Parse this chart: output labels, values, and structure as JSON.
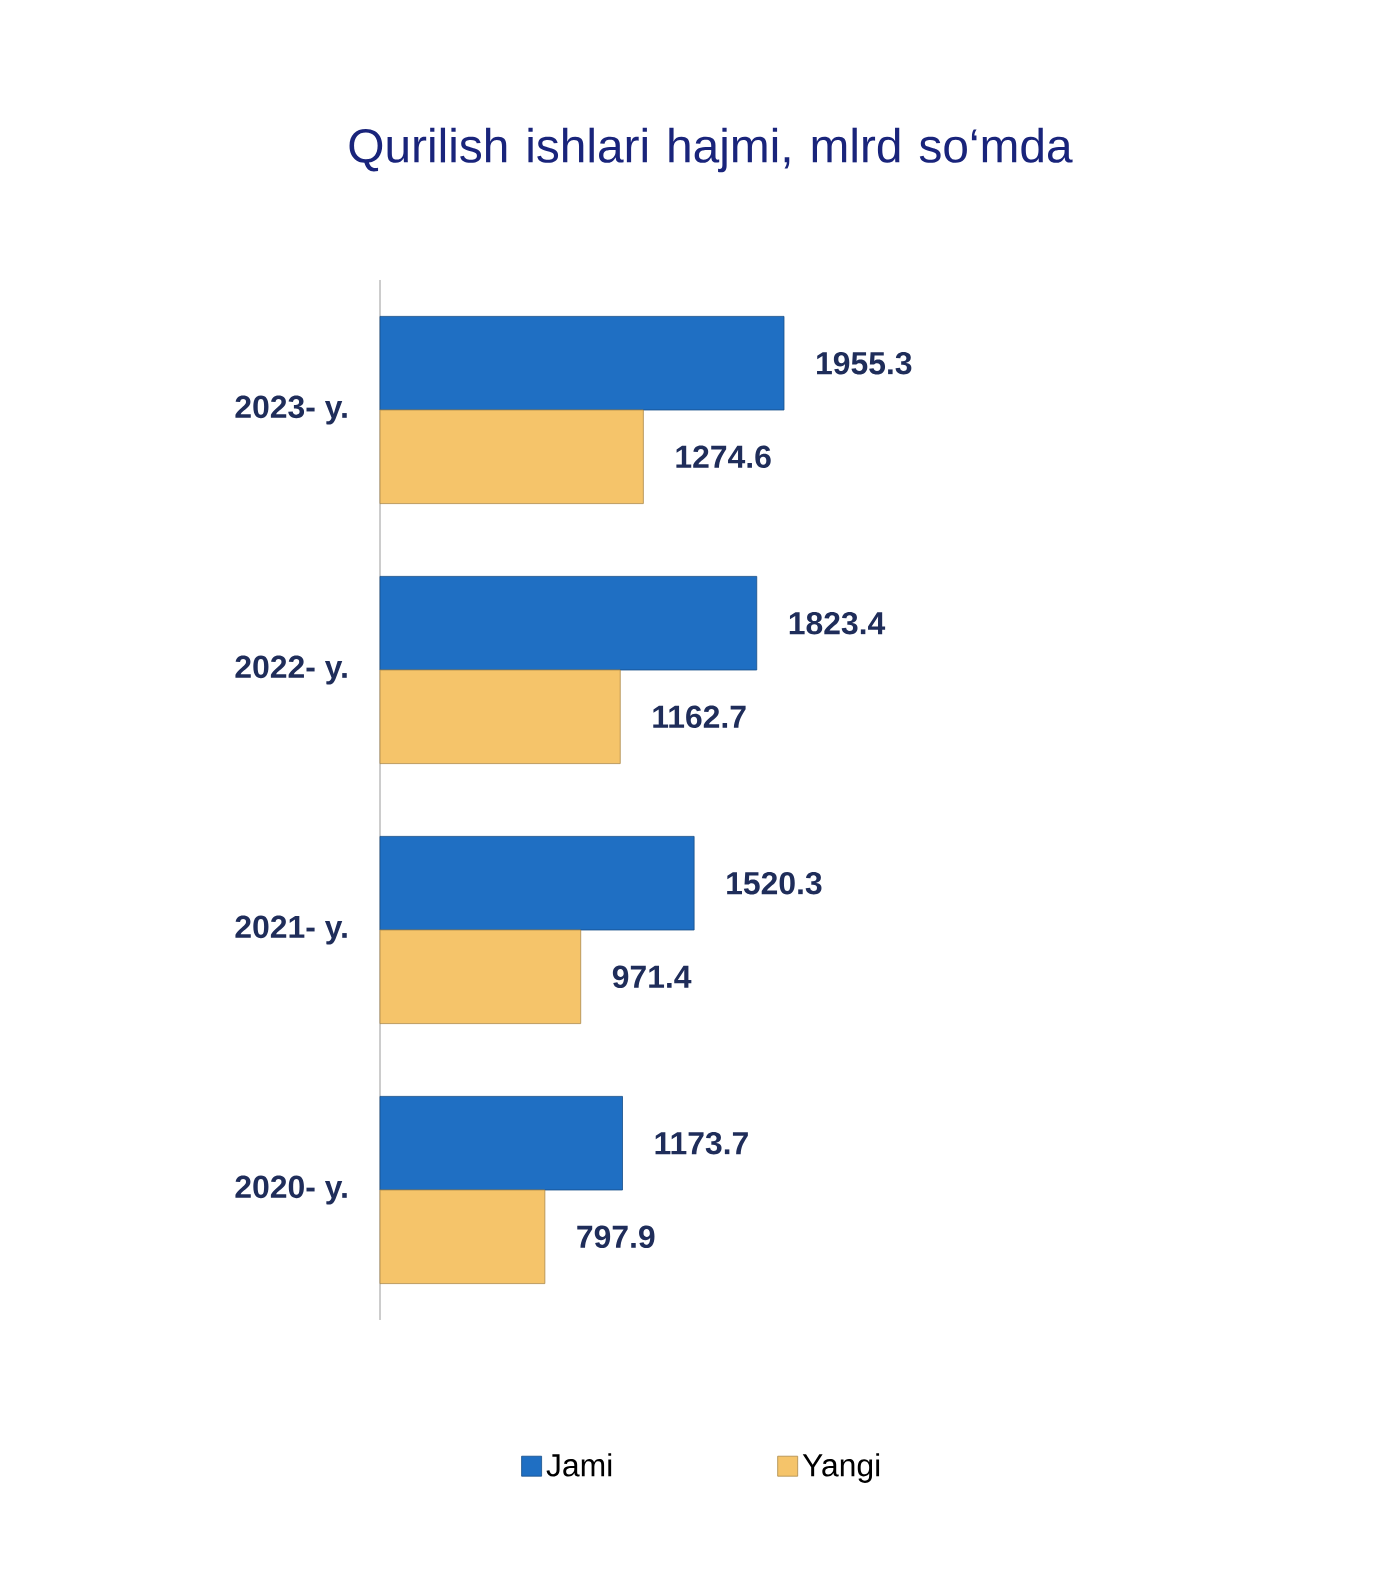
{
  "chart_data": {
    "type": "bar",
    "orientation": "horizontal",
    "title": "Qurilish ishlari hajmi, mlrd so‘mda",
    "categories": [
      "2023- y.",
      "2022- y.",
      "2021- y.",
      "2020- y."
    ],
    "series": [
      {
        "name": "Jami",
        "color": "#1f6fc3",
        "values": [
          1955.3,
          1823.4,
          1520.3,
          1173.7
        ]
      },
      {
        "name": "Yangi",
        "color": "#f5c46a",
        "values": [
          1274.6,
          1162.7,
          971.4,
          797.9
        ]
      }
    ],
    "data_labels": true,
    "legend": "bottom"
  }
}
